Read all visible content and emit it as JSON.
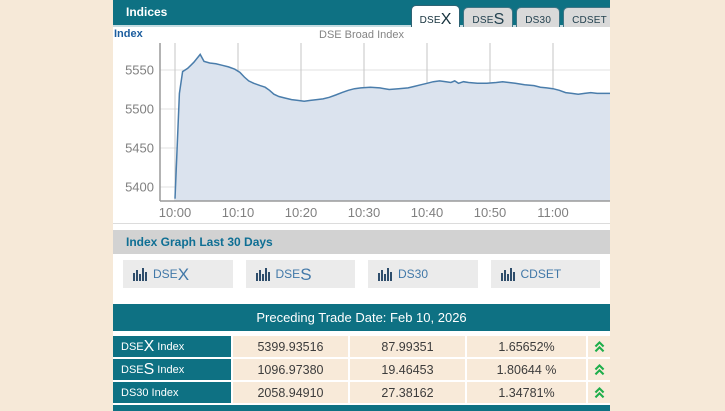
{
  "header": {
    "title": "Indices",
    "tabs": [
      {
        "small": "DSE",
        "big": "X"
      },
      {
        "small": "DSE",
        "big": "S"
      },
      {
        "small": "DS30",
        "big": ""
      },
      {
        "small": "CDSET",
        "big": ""
      }
    ]
  },
  "chart": {
    "link_label": "Index"
  },
  "chart_data": {
    "type": "area",
    "title": "DSE Broad Index",
    "xlabel": "",
    "ylabel": "",
    "x_ticks": [
      "10:00",
      "10:10",
      "10:20",
      "10:30",
      "10:40",
      "10:50",
      "11:00"
    ],
    "y_ticks": [
      5550,
      5500,
      5450,
      5400
    ],
    "ylim": [
      5382,
      5584
    ],
    "grid": true,
    "legend_position": "none",
    "line_color": "#4a7dab",
    "fill_color": "#dbe3ee",
    "series": [
      {
        "name": "DSE Broad Index",
        "points_minutes_value": [
          [
            0,
            5385
          ],
          [
            0.7,
            5520
          ],
          [
            1.2,
            5548
          ],
          [
            2,
            5552
          ],
          [
            2.5,
            5556
          ],
          [
            3,
            5560
          ],
          [
            4,
            5570
          ],
          [
            4.6,
            5561
          ],
          [
            5.5,
            5559
          ],
          [
            6.5,
            5558
          ],
          [
            7.5,
            5556
          ],
          [
            8.5,
            5554
          ],
          [
            9.5,
            5551
          ],
          [
            10.3,
            5547
          ],
          [
            11,
            5541
          ],
          [
            11.7,
            5536
          ],
          [
            12.5,
            5533
          ],
          [
            13.5,
            5530
          ],
          [
            14.3,
            5528
          ],
          [
            15,
            5524
          ],
          [
            15.7,
            5519
          ],
          [
            16.5,
            5516
          ],
          [
            17.5,
            5514
          ],
          [
            18.5,
            5512
          ],
          [
            19.5,
            5511
          ],
          [
            20.5,
            5510
          ],
          [
            21.5,
            5511
          ],
          [
            22.5,
            5512
          ],
          [
            23.5,
            5513
          ],
          [
            24.5,
            5515
          ],
          [
            25.5,
            5518
          ],
          [
            26.5,
            5521
          ],
          [
            27.5,
            5524
          ],
          [
            28.5,
            5526
          ],
          [
            29.5,
            5527
          ],
          [
            31,
            5528
          ],
          [
            32.5,
            5527
          ],
          [
            34,
            5525
          ],
          [
            35.5,
            5526
          ],
          [
            37,
            5527
          ],
          [
            38,
            5529
          ],
          [
            39,
            5531
          ],
          [
            40,
            5533
          ],
          [
            41,
            5535
          ],
          [
            42,
            5536
          ],
          [
            43,
            5535
          ],
          [
            43.8,
            5534
          ],
          [
            44.4,
            5536
          ],
          [
            45,
            5533
          ],
          [
            45.8,
            5535
          ],
          [
            46.6,
            5534
          ],
          [
            48,
            5533
          ],
          [
            49.5,
            5533
          ],
          [
            51,
            5534
          ],
          [
            52,
            5535
          ],
          [
            53,
            5534
          ],
          [
            54,
            5533
          ],
          [
            55.5,
            5531
          ],
          [
            57,
            5530
          ],
          [
            58,
            5528
          ],
          [
            59,
            5527
          ],
          [
            60,
            5526
          ],
          [
            61,
            5524
          ],
          [
            62,
            5521
          ],
          [
            63,
            5520
          ],
          [
            64,
            5519
          ],
          [
            65,
            5520
          ],
          [
            66,
            5521
          ],
          [
            67,
            5520
          ],
          [
            69,
            5520
          ]
        ]
      }
    ]
  },
  "graph_section": {
    "title": "Index Graph Last 30 Days",
    "buttons": [
      {
        "small": "DSE",
        "big": "X"
      },
      {
        "small": "DSE",
        "big": "S"
      },
      {
        "small": "DS30",
        "big": ""
      },
      {
        "small": "CDSET",
        "big": ""
      }
    ]
  },
  "trade_date_bar": "Preceding Trade Date: Feb 10, 2026",
  "indices_table": {
    "rows": [
      {
        "label_small": "DSE",
        "label_big": "X",
        "label_suffix": "Index",
        "value": "5399.93516",
        "change": "87.99351",
        "percent": "1.65652%",
        "direction": "up"
      },
      {
        "label_small": "DSE",
        "label_big": "S",
        "label_suffix": "Index",
        "value": "1096.97380",
        "change": "19.46453",
        "percent": "1.80644 %",
        "direction": "up"
      },
      {
        "label_small": "DS30",
        "label_big": "",
        "label_suffix": "Index",
        "value": "2058.94910",
        "change": "27.38162",
        "percent": "1.34781%",
        "direction": "up"
      }
    ]
  },
  "colors": {
    "teal": "#0e7183",
    "page_background": "#f6e9d8",
    "cell_background": "#f8ead9",
    "up_arrow_green": "#1fae4b",
    "link_blue": "#1b5d9e"
  }
}
